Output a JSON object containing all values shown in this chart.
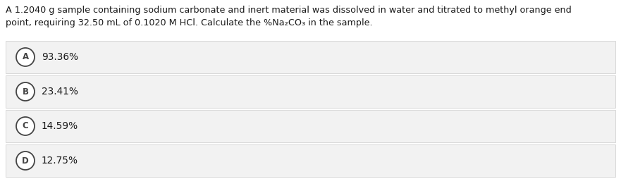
{
  "question_line1": "A 1.2040 g sample containing sodium carbonate and inert material was dissolved in water and titrated to methyl orange end",
  "question_line2": "point, requiring 32.50 mL of 0.1020 M HCl. Calculate the %Na₂CO₃ in the sample.",
  "options": [
    {
      "label": "A",
      "text": "93.36%"
    },
    {
      "label": "B",
      "text": "23.41%"
    },
    {
      "label": "C",
      "text": "14.59%"
    },
    {
      "label": "D",
      "text": "12.75%"
    }
  ],
  "background_color": "#ffffff",
  "option_bg_color": "#f2f2f2",
  "option_border_color": "#cccccc",
  "text_color": "#1a1a1a",
  "circle_edge_color": "#444444",
  "circle_face_color": "#ffffff",
  "font_size_question": 9.2,
  "font_size_option": 9.8,
  "circle_font_size": 8.5,
  "fig_width": 8.81,
  "fig_height": 2.54,
  "dpi": 100
}
